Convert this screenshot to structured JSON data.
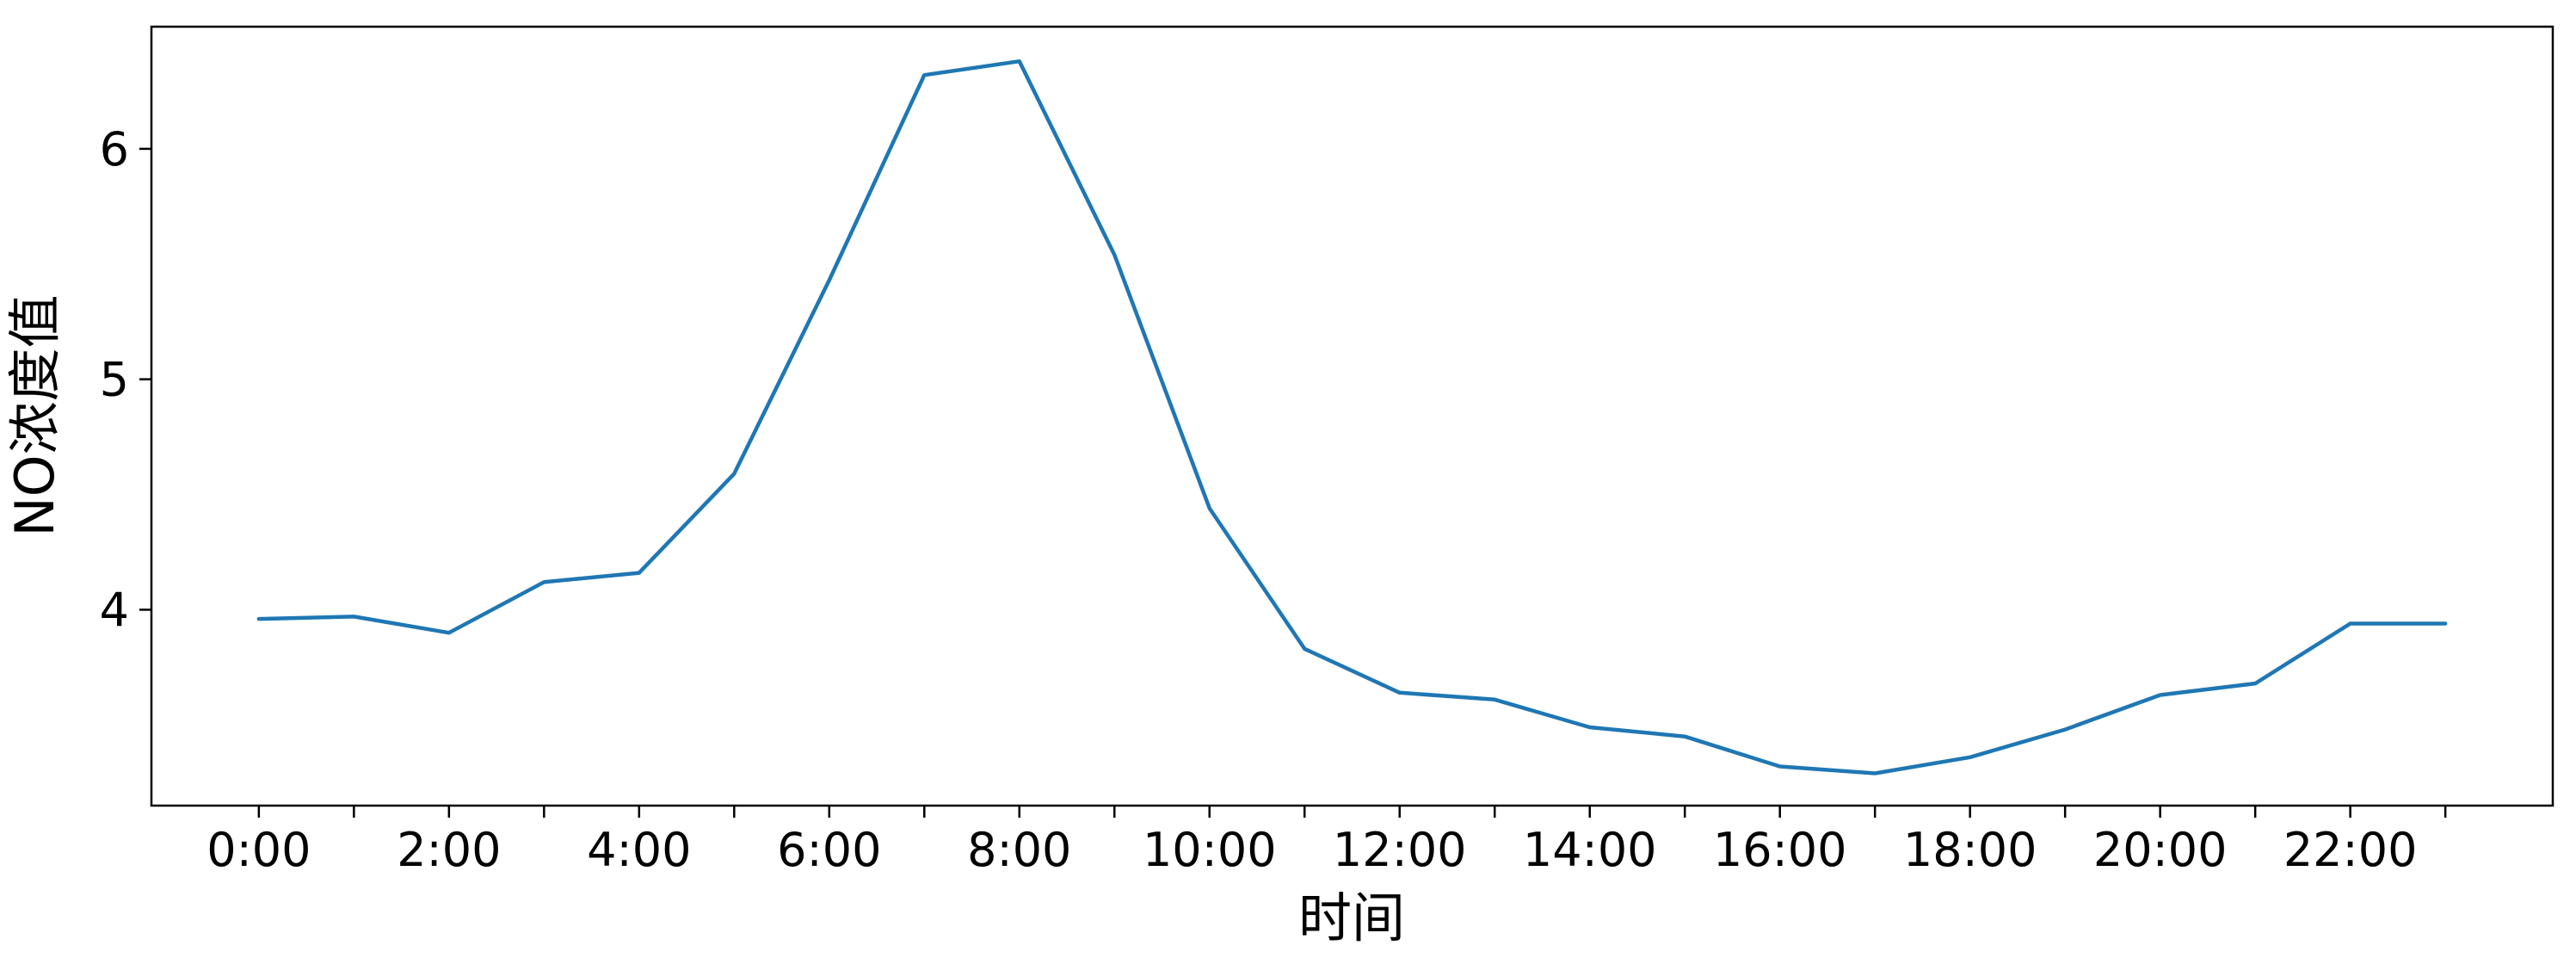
{
  "chart_data": {
    "type": "line",
    "xlabel": "时间",
    "ylabel": "NO浓度值",
    "categories": [
      "0:00",
      "1:00",
      "2:00",
      "3:00",
      "4:00",
      "5:00",
      "6:00",
      "7:00",
      "8:00",
      "9:00",
      "10:00",
      "11:00",
      "12:00",
      "13:00",
      "14:00",
      "15:00",
      "16:00",
      "17:00",
      "18:00",
      "19:00",
      "20:00",
      "21:00",
      "22:00",
      "23:00"
    ],
    "x_tick_labels": [
      "0:00",
      "2:00",
      "4:00",
      "6:00",
      "8:00",
      "10:00",
      "12:00",
      "14:00",
      "16:00",
      "18:00",
      "20:00",
      "22:00"
    ],
    "series": [
      {
        "values": [
          3.96,
          3.97,
          3.9,
          4.12,
          4.16,
          4.59,
          5.43,
          6.32,
          6.38,
          5.54,
          4.44,
          3.83,
          3.64,
          3.61,
          3.49,
          3.45,
          3.32,
          3.29,
          3.36,
          3.48,
          3.63,
          3.68,
          3.94,
          3.94
        ],
        "color": "#1f77b4"
      }
    ],
    "yticks": [
      4,
      5,
      6
    ],
    "ylim": [
      3.15,
      6.53
    ],
    "xlim": [
      -1.13,
      24.13
    ],
    "grid": false
  }
}
